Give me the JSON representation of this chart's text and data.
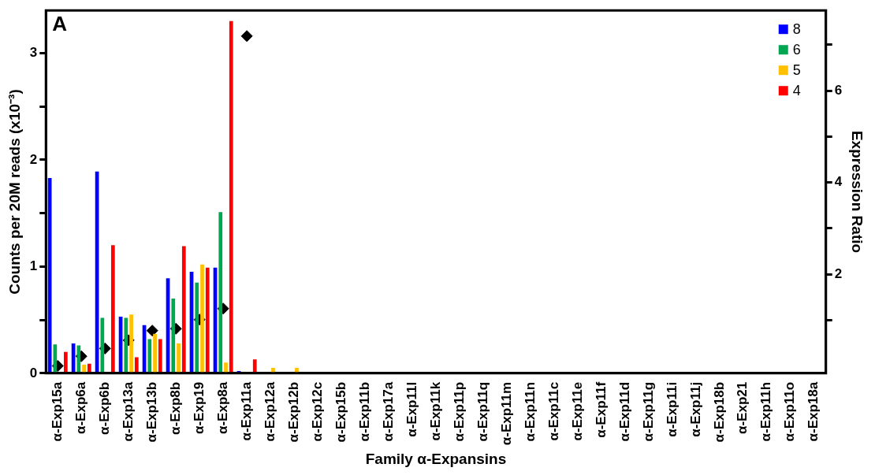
{
  "chart_data": {
    "type": "bar",
    "xlabel": "Family α-Expansins",
    "ylabel": "Counts per 20M reads (x10⁻³)",
    "y2label": "Expression Ratio",
    "annotations": [
      "A"
    ],
    "categories": [
      "α-Exp15a",
      "α-Exp6a",
      "α-Exp6b",
      "α-Exp13a",
      "α-Exp13b",
      "α-Exp8b",
      "α-Exp19",
      "α-Exp8a",
      "α-Exp11a",
      "α-Exp12a",
      "α-Exp12b",
      "α-Exp12c",
      "α-Exp15b",
      "α-Exp11b",
      "α-Exp17a",
      "α-Exp11l",
      "α-Exp11k",
      "α-Exp11p",
      "α-Exp11q",
      "α-Exp11m",
      "α-Exp11n",
      "α-Exp11c",
      "α-Exp11e",
      "α-Exp11f",
      "α-Exp11d",
      "α-Exp11g",
      "α-Exp11i",
      "α-Exp11j",
      "α-Exp18b",
      "α-Exp21",
      "α-Exp11h",
      "α-Exp11o",
      "α-Exp18a"
    ],
    "series": [
      {
        "name": "8",
        "color": "#0000ff",
        "values": [
          1.83,
          0.28,
          1.89,
          0.53,
          0.45,
          0.89,
          0.95,
          0.99,
          0.02,
          0,
          0,
          0,
          0,
          0,
          0,
          0,
          0,
          0,
          0,
          0,
          0,
          0,
          0,
          0,
          0,
          0,
          0,
          0,
          0,
          0,
          0,
          0,
          0
        ]
      },
      {
        "name": "6",
        "color": "#00a651",
        "values": [
          0.27,
          0.26,
          0.52,
          0.52,
          0.32,
          0.7,
          0.85,
          1.51,
          0,
          0,
          0,
          0,
          0,
          0,
          0,
          0,
          0,
          0,
          0,
          0,
          0,
          0,
          0,
          0,
          0,
          0,
          0,
          0,
          0,
          0,
          0,
          0,
          0
        ]
      },
      {
        "name": "5",
        "color": "#ffc000",
        "values": [
          0,
          0.08,
          0,
          0.55,
          0.37,
          0.28,
          1.02,
          0.1,
          0,
          0.05,
          0.05,
          0,
          0,
          0,
          0,
          0,
          0,
          0,
          0,
          0,
          0,
          0,
          0,
          0,
          0,
          0,
          0,
          0,
          0,
          0,
          0,
          0,
          0
        ]
      },
      {
        "name": "4",
        "color": "#ff0000",
        "values": [
          0.2,
          0.09,
          1.2,
          0.15,
          0.32,
          1.19,
          0.99,
          3.3,
          0.13,
          0,
          0,
          0,
          0,
          0,
          0,
          0,
          0,
          0,
          0,
          0,
          0,
          0,
          0,
          0,
          0,
          0,
          0,
          0,
          0,
          0,
          0,
          0,
          0
        ]
      },
      {
        "type": "scatter",
        "axis": "y2",
        "color": "#000000",
        "marker": "diamond",
        "values": [
          0,
          0.21,
          0.38,
          0.56,
          0.77,
          0.81,
          1.01,
          1.25,
          7.19,
          null,
          null,
          null,
          null,
          null,
          null,
          null,
          null,
          null,
          null,
          null,
          null,
          null,
          null,
          null,
          null,
          null,
          null,
          null,
          null,
          null,
          null,
          null,
          null
        ]
      }
    ],
    "ylim": [
      0,
      3.4
    ],
    "yticks": [
      0,
      {
        "value": 0.5,
        "label": null
      },
      1,
      {
        "value": 1.5,
        "label": null
      },
      2,
      {
        "value": 2.5,
        "label": null
      },
      3
    ],
    "y2lim": [
      -0.16,
      7.75
    ],
    "y2ticks": [
      {
        "value": 1,
        "label": null
      },
      2,
      {
        "value": 3,
        "label": null
      },
      4,
      {
        "value": 5,
        "label": null
      },
      6,
      {
        "value": 7,
        "label": null
      }
    ],
    "legend": "top right",
    "grid": false
  }
}
